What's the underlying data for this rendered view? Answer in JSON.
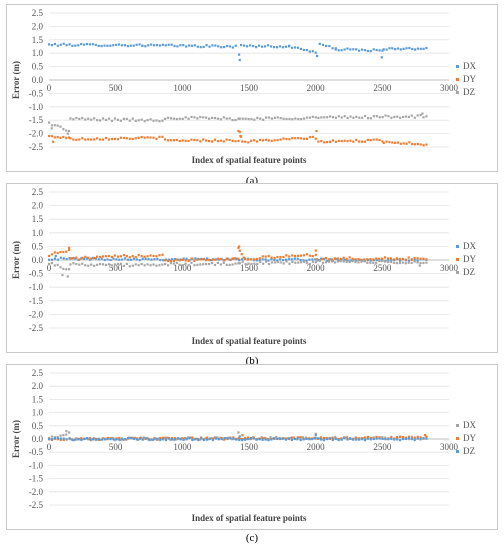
{
  "charts": [
    {
      "caption": "(a)",
      "chart_data": {
        "type": "scatter",
        "xlabel": "Index of spatial feature points",
        "ylabel": "Error (m)",
        "xlim": [
          0,
          3000
        ],
        "ylim": [
          -2.5,
          2.5
        ],
        "xticks": [
          "0",
          "500",
          "1000",
          "1500",
          "2000",
          "2500",
          "3000"
        ],
        "yticks": [
          "2.5",
          "2.0",
          "1.5",
          "1.0",
          "0.5",
          "0.0",
          "-0.5",
          "-1.0",
          "-1.5",
          "-2.0",
          "-2.5"
        ],
        "grid": "horizontal",
        "legend": "right",
        "series": [
          {
            "name": "DX",
            "color": "#5b9bd5",
            "noise": 0.04,
            "segments": [
              [
                [
                  0,
                  1.32
                ],
                [
                  700,
                  1.3
                ],
                [
                  1400,
                  1.25
                ]
              ],
              [
                [
                  1440,
                  1.28
                ],
                [
                  1800,
                  1.25
                ],
                [
                  2000,
                  1.05
                ]
              ],
              [
                [
                  2030,
                  1.35
                ],
                [
                  2150,
                  1.15
                ],
                [
                  2500,
                  1.1
                ]
              ],
              [
                [
                  2510,
                  1.15
                ],
                [
                  2830,
                  1.18
                ]
              ]
            ],
            "outliers": [
              [
                1425,
                0.95
              ],
              [
                1430,
                0.75
              ],
              [
                2010,
                0.9
              ],
              [
                2495,
                0.85
              ]
            ]
          },
          {
            "name": "DY",
            "color": "#ed7d31",
            "noise": 0.04,
            "segments": [
              [
                [
                  0,
                  -2.1
                ],
                [
                  150,
                  -2.15
                ]
              ],
              [
                [
                  160,
                  -2.2
                ],
                [
                  850,
                  -2.15
                ]
              ],
              [
                [
                  870,
                  -2.25
                ],
                [
                  1420,
                  -2.25
                ]
              ],
              [
                [
                  1430,
                  -1.95
                ],
                [
                  1440,
                  -2.15
                ]
              ],
              [
                [
                  1450,
                  -2.3
                ],
                [
                  2000,
                  -2.15
                ]
              ],
              [
                [
                  2020,
                  -2.3
                ],
                [
                  2500,
                  -2.25
                ]
              ],
              [
                [
                  2510,
                  -2.3
                ],
                [
                  2830,
                  -2.4
                ]
              ]
            ],
            "outliers": [
              [
                1420,
                -1.9
              ],
              [
                2005,
                -1.9
              ],
              [
                30,
                -2.3
              ]
            ]
          },
          {
            "name": "DZ",
            "color": "#a5a5a5",
            "noise": 0.05,
            "segments": [
              [
                [
                  0,
                  -1.6
                ],
                [
                  150,
                  -1.9
                ]
              ],
              [
                [
                  160,
                  -1.45
                ],
                [
                  850,
                  -1.5
                ]
              ],
              [
                [
                  870,
                  -1.4
                ],
                [
                  1420,
                  -1.45
                ]
              ],
              [
                [
                  1430,
                  -1.45
                ],
                [
                  2000,
                  -1.4
                ]
              ],
              [
                [
                  2020,
                  -1.4
                ],
                [
                  2830,
                  -1.35
                ]
              ]
            ],
            "outliers": [
              [
                20,
                -1.8
              ],
              [
                140,
                -2.0
              ],
              [
                2800,
                -1.25
              ]
            ]
          }
        ]
      }
    },
    {
      "caption": "(b)",
      "chart_data": {
        "type": "scatter",
        "xlabel": "Index of spatial feature points",
        "ylabel": "Error (m)",
        "xlim": [
          0,
          3000
        ],
        "ylim": [
          -2.5,
          2.5
        ],
        "xticks": [
          "0",
          "500",
          "1000",
          "1500",
          "2000",
          "2500",
          "3000"
        ],
        "yticks": [
          "2.5",
          "2.0",
          "1.5",
          "1.0",
          "0.5",
          "0.0",
          "-0.5",
          "-1.0",
          "-1.5",
          "-2.0",
          "-2.5"
        ],
        "grid": "horizontal",
        "legend": "right",
        "series": [
          {
            "name": "DX",
            "color": "#5b9bd5",
            "noise": 0.04,
            "segments": [
              [
                [
                  0,
                  0.05
                ],
                [
                  2830,
                  0.0
                ]
              ]
            ],
            "outliers": [
              [
                50,
                0.15
              ]
            ]
          },
          {
            "name": "DY",
            "color": "#ed7d31",
            "noise": 0.05,
            "segments": [
              [
                [
                  0,
                  0.2
                ],
                [
                  150,
                  0.35
                ]
              ],
              [
                [
                  160,
                  0.05
                ],
                [
                  850,
                  0.2
                ]
              ],
              [
                [
                  870,
                  0.0
                ],
                [
                  1420,
                  0.05
                ]
              ],
              [
                [
                  1430,
                  0.35
                ],
                [
                  1460,
                  0.1
                ]
              ],
              [
                [
                  1470,
                  0.05
                ],
                [
                  2000,
                  0.2
                ]
              ],
              [
                [
                  2010,
                  0.05
                ],
                [
                  2830,
                  0.05
                ]
              ]
            ],
            "outliers": [
              [
                1420,
                0.45
              ],
              [
                1425,
                0.5
              ],
              [
                2000,
                0.35
              ],
              [
                150,
                0.45
              ]
            ]
          },
          {
            "name": "DZ",
            "color": "#a5a5a5",
            "noise": 0.05,
            "segments": [
              [
                [
                  0,
                  -0.1
                ],
                [
                  150,
                  -0.35
                ]
              ],
              [
                [
                  160,
                  -0.15
                ],
                [
                  850,
                  -0.2
                ]
              ],
              [
                [
                  870,
                  -0.15
                ],
                [
                  1420,
                  -0.15
                ]
              ],
              [
                [
                  1430,
                  -0.1
                ],
                [
                  2000,
                  -0.1
                ]
              ],
              [
                [
                  2010,
                  -0.05
                ],
                [
                  2830,
                  -0.1
                ]
              ]
            ],
            "outliers": [
              [
                100,
                -0.55
              ],
              [
                140,
                -0.6
              ],
              [
                2780,
                -0.2
              ]
            ]
          }
        ]
      }
    },
    {
      "caption": "(c)",
      "chart_data": {
        "type": "scatter",
        "xlabel": "Index of spatial feature points",
        "ylabel": "Error (m)",
        "xlim": [
          0,
          3000
        ],
        "ylim": [
          -2.5,
          2.5
        ],
        "xticks": [
          "0",
          "500",
          "1000",
          "1500",
          "2000",
          "2500",
          "3000"
        ],
        "yticks": [
          "2.5",
          "2.0",
          "1.5",
          "1.0",
          "0.5",
          "0.0",
          "-0.5",
          "-1.0",
          "-1.5",
          "-2.0",
          "-2.5"
        ],
        "grid": "horizontal",
        "legend": "right",
        "series": [
          {
            "name": "DX",
            "color": "#a5a5a5",
            "noise": 0.05,
            "segments": [
              [
                [
                  0,
                  0.05
                ],
                [
                  150,
                  0.2
                ]
              ],
              [
                [
                  160,
                  0.0
                ],
                [
                  2830,
                  0.05
                ]
              ]
            ],
            "outliers": [
              [
                130,
                0.3
              ],
              [
                1420,
                0.25
              ],
              [
                2000,
                0.2
              ]
            ]
          },
          {
            "name": "DY",
            "color": "#ed7d31",
            "noise": 0.04,
            "segments": [
              [
                [
                  0,
                  0.0
                ],
                [
                  2830,
                  0.05
                ]
              ]
            ],
            "outliers": [
              [
                1450,
                0.15
              ],
              [
                2820,
                0.15
              ]
            ]
          },
          {
            "name": "DZ",
            "color": "#5b9bd5",
            "noise": 0.04,
            "segments": [
              [
                [
                  0,
                  0.0
                ],
                [
                  2830,
                  0.0
                ]
              ]
            ],
            "outliers": [
              [
                2000,
                0.15
              ],
              [
                1430,
                0.1
              ]
            ]
          }
        ]
      }
    }
  ]
}
